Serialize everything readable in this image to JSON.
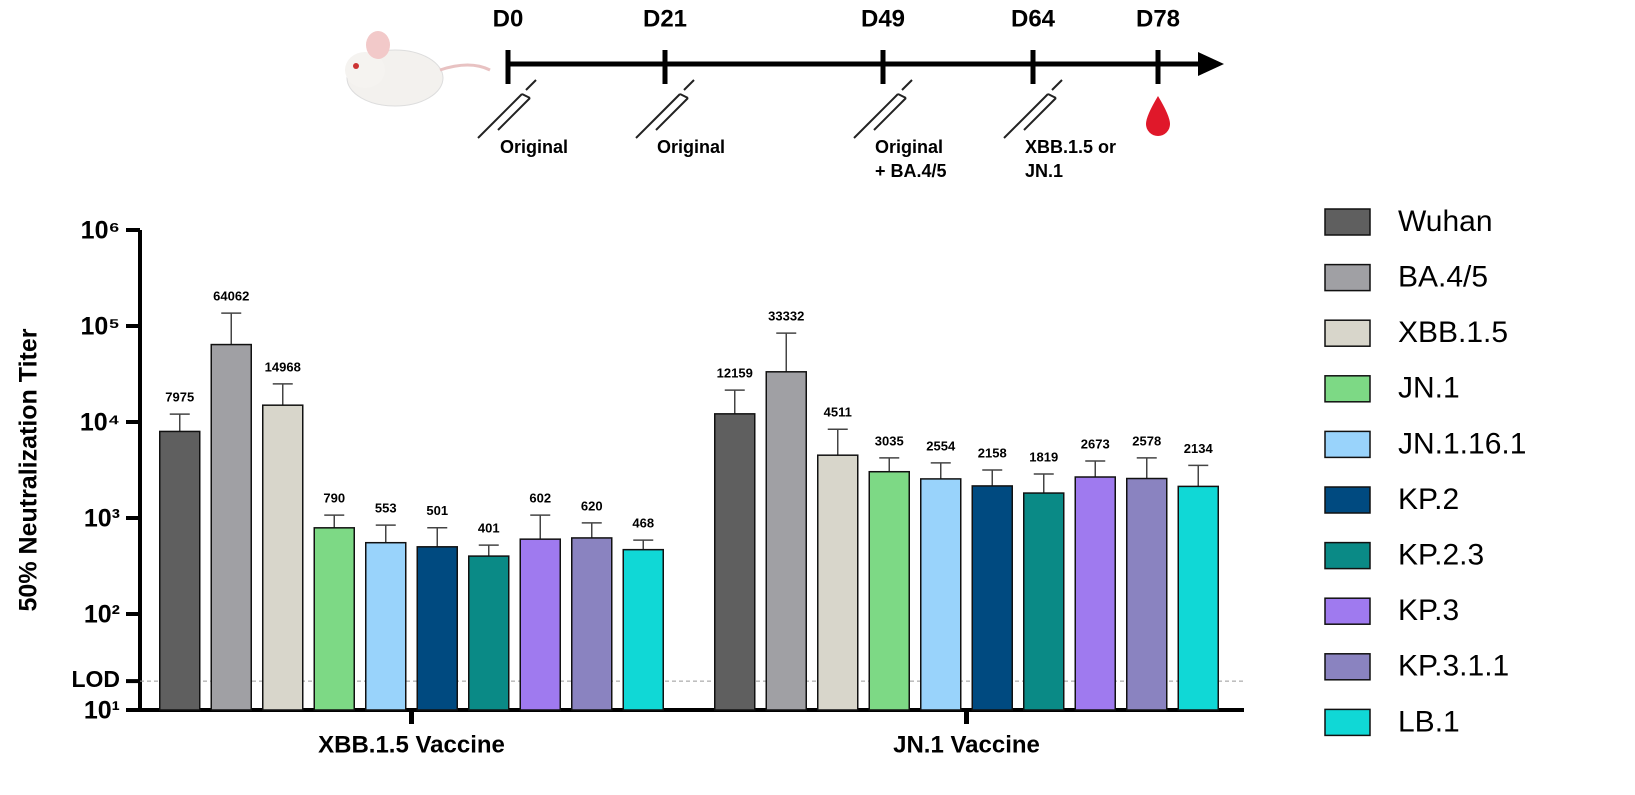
{
  "timeline": {
    "days": [
      "D0",
      "D21",
      "D49",
      "D64",
      "D78"
    ],
    "doses": [
      [
        "Original"
      ],
      [
        "Original"
      ],
      [
        "Original",
        "+ BA.4/5"
      ],
      [
        "XBB.1.5 or",
        "JN.1"
      ]
    ]
  },
  "chart_data": {
    "type": "bar",
    "log_scale": true,
    "y_label": "50% Neutralization Titer",
    "categories": [
      "XBB.1.5 Vaccine",
      "JN.1 Vaccine"
    ],
    "ylim": [
      10,
      1000000
    ],
    "yticks": [
      {
        "value": 10,
        "label": "10¹"
      },
      {
        "value": 100,
        "label": "10²"
      },
      {
        "value": 1000,
        "label": "10³"
      },
      {
        "value": 10000,
        "label": "10⁴"
      },
      {
        "value": 100000,
        "label": "10⁵"
      },
      {
        "value": 1000000,
        "label": "10⁶"
      }
    ],
    "lod": {
      "value": 20,
      "label": "LOD"
    },
    "series": [
      {
        "name": "Wuhan",
        "color": "#5f5f5f",
        "values": [
          7975,
          12159
        ],
        "errors": [
          4100,
          9300
        ]
      },
      {
        "name": "BA.4/5",
        "color": "#a0a0a4",
        "values": [
          64062,
          33332
        ],
        "errors": [
          72000,
          51000
        ]
      },
      {
        "name": "XBB.1.5",
        "color": "#d8d6cb",
        "values": [
          14968,
          4511
        ],
        "errors": [
          10000,
          3900
        ]
      },
      {
        "name": "JN.1",
        "color": "#7dd985",
        "values": [
          790,
          3035
        ],
        "errors": [
          280,
          1200
        ]
      },
      {
        "name": "JN.1.16.1",
        "color": "#99d3fb",
        "values": [
          553,
          2554
        ],
        "errors": [
          290,
          1200
        ]
      },
      {
        "name": "KP.2",
        "color": "#004a80",
        "values": [
          501,
          2158
        ],
        "errors": [
          290,
          1000
        ]
      },
      {
        "name": "KP.2.3",
        "color": "#0a8a86",
        "values": [
          401,
          1819
        ],
        "errors": [
          120,
          1050
        ]
      },
      {
        "name": "KP.3",
        "color": "#9f7aef",
        "values": [
          602,
          2673
        ],
        "errors": [
          470,
          1250
        ]
      },
      {
        "name": "KP.3.1.1",
        "color": "#8a83c0",
        "values": [
          620,
          2578
        ],
        "errors": [
          270,
          1650
        ]
      },
      {
        "name": "LB.1",
        "color": "#10d8d6",
        "values": [
          468,
          2134
        ],
        "errors": [
          120,
          1400
        ]
      }
    ]
  }
}
